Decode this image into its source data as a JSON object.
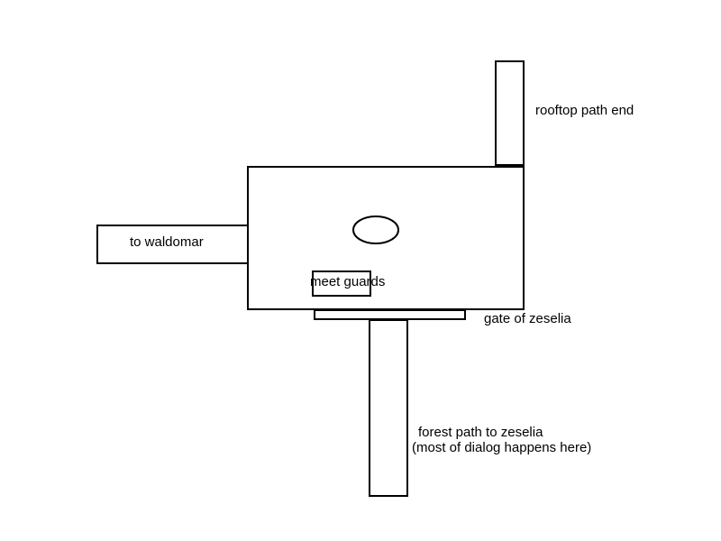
{
  "map": {
    "labels": {
      "rooftop": "rooftop path end",
      "waldomar": "to waldomar",
      "meet_guards": "meet guards",
      "gate": "gate of zeselia",
      "forest_line1": "forest path to zeselia",
      "forest_line2": "(most of dialog happens here)"
    },
    "colors": {
      "stroke": "#000000",
      "background": "#ffffff"
    }
  }
}
